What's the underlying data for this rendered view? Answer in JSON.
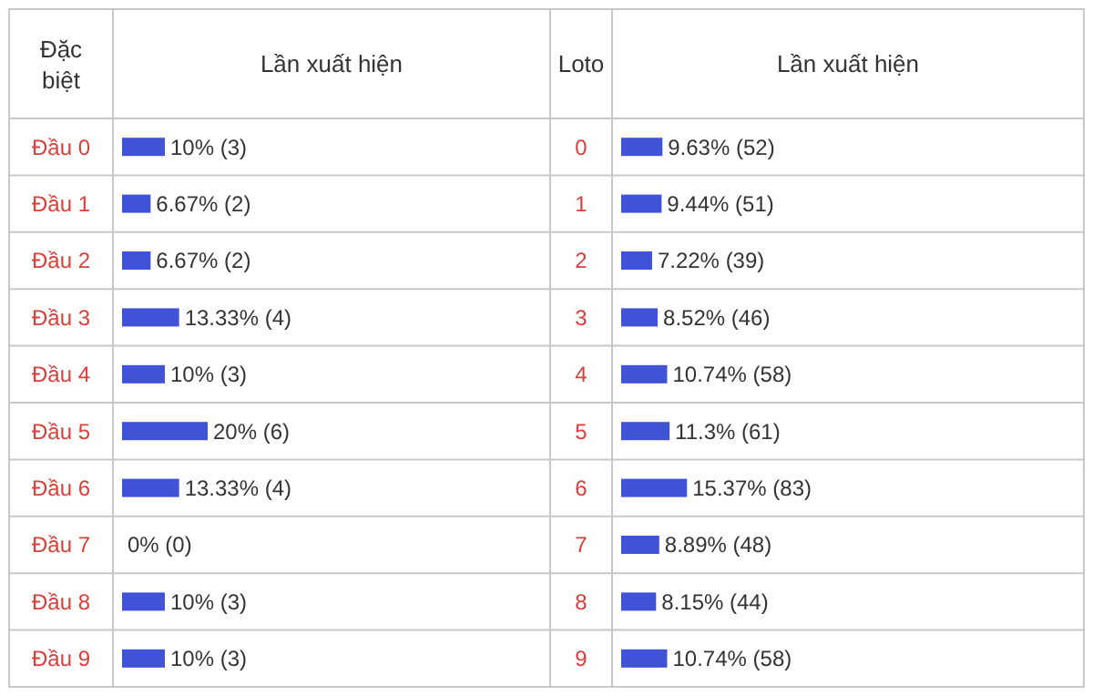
{
  "chart_data": [
    {
      "type": "bar",
      "orientation": "horizontal",
      "ylabel": "Đặc\nbiệt",
      "xlabel": "Lần xuất hiện",
      "color": "#4052d6",
      "categories": [
        "Đầu 0",
        "Đầu 1",
        "Đầu 2",
        "Đầu 3",
        "Đầu 4",
        "Đầu 5",
        "Đầu 6",
        "Đầu 7",
        "Đầu 8",
        "Đầu 9"
      ],
      "values": [
        10,
        6.67,
        6.67,
        13.33,
        10,
        20,
        13.33,
        0,
        10,
        10
      ],
      "value_labels": [
        "10% (3)",
        "6.67% (2)",
        "6.67% (2)",
        "13.33% (4)",
        "10% (3)",
        "20% (6)",
        "13.33% (4)",
        "0% (0)",
        "10% (3)",
        "10% (3)"
      ]
    },
    {
      "type": "bar",
      "orientation": "horizontal",
      "ylabel": "Loto",
      "xlabel": "Lần xuất hiện",
      "color": "#4052d6",
      "categories": [
        "0",
        "1",
        "2",
        "3",
        "4",
        "5",
        "6",
        "7",
        "8",
        "9"
      ],
      "values": [
        9.63,
        9.44,
        7.22,
        8.52,
        10.74,
        11.3,
        15.37,
        8.89,
        8.15,
        10.74
      ],
      "value_labels": [
        "9.63% (52)",
        "9.44% (51)",
        "7.22% (39)",
        "8.52% (46)",
        "10.74% (58)",
        "11.3% (61)",
        "15.37% (83)",
        "8.89% (48)",
        "8.15% (44)",
        "10.74% (58)"
      ]
    }
  ]
}
